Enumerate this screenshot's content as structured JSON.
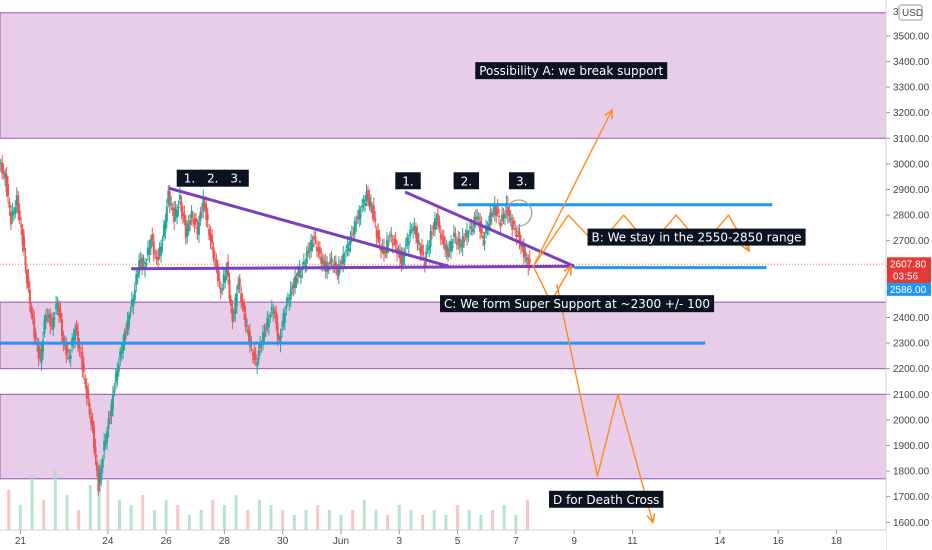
{
  "chart_data": {
    "type": "candlestick",
    "y_unit": "USD",
    "y_range": [
      1570,
      3640
    ],
    "y_ticks": [
      "3500.00",
      "3400.00",
      "3300.00",
      "3200.00",
      "3100.00",
      "3000.00",
      "2900.00",
      "2800.00",
      "2700.00",
      "2600.00",
      "2500.00",
      "2400.00",
      "2300.00",
      "2200.00",
      "2100.00",
      "2000.00",
      "1900.00",
      "1800.00",
      "1700.00",
      "1600.00"
    ],
    "y_tick_values": [
      3500,
      3400,
      3300,
      3200,
      3100,
      3000,
      2900,
      2800,
      2700,
      2600,
      2500,
      2400,
      2300,
      2200,
      2100,
      2000,
      1900,
      1800,
      1700,
      1600
    ],
    "x_ticks": [
      "21",
      "24",
      "26",
      "28",
      "30",
      "Jun",
      "3",
      "5",
      "7",
      "9",
      "11",
      "14",
      "16",
      "18"
    ],
    "x_tick_days": [
      -11,
      -8,
      -6,
      -4,
      -2,
      0,
      2,
      4,
      6,
      8,
      10,
      13,
      15,
      17
    ],
    "x_range_days": [
      -11.7,
      18.7
    ],
    "top_cut_label": "3(",
    "currency_badge": "USD",
    "current_price": "2607.80",
    "countdown": "03:56",
    "support_price": "2586.00",
    "current_price_value": 2607.8,
    "support_price_value": 2586,
    "zones": [
      {
        "from": 3100,
        "to": 3590
      },
      {
        "from": 2200,
        "to": 2460
      },
      {
        "from": 1770,
        "to": 2100
      }
    ],
    "price_path": [
      [
        -11.7,
        3000
      ],
      [
        -11.5,
        2950
      ],
      [
        -11.3,
        2780
      ],
      [
        -11.1,
        2860
      ],
      [
        -10.9,
        2700
      ],
      [
        -10.7,
        2500
      ],
      [
        -10.5,
        2340
      ],
      [
        -10.3,
        2230
      ],
      [
        -10.1,
        2420
      ],
      [
        -9.9,
        2370
      ],
      [
        -9.7,
        2460
      ],
      [
        -9.5,
        2300
      ],
      [
        -9.3,
        2240
      ],
      [
        -9.1,
        2360
      ],
      [
        -8.9,
        2250
      ],
      [
        -8.7,
        2100
      ],
      [
        -8.5,
        1960
      ],
      [
        -8.3,
        1740
      ],
      [
        -8.1,
        1900
      ],
      [
        -7.9,
        2020
      ],
      [
        -7.7,
        2170
      ],
      [
        -7.5,
        2280
      ],
      [
        -7.3,
        2380
      ],
      [
        -7.1,
        2480
      ],
      [
        -6.9,
        2620
      ],
      [
        -6.7,
        2600
      ],
      [
        -6.5,
        2710
      ],
      [
        -6.3,
        2620
      ],
      [
        -6.1,
        2700
      ],
      [
        -5.9,
        2880
      ],
      [
        -5.7,
        2790
      ],
      [
        -5.5,
        2860
      ],
      [
        -5.3,
        2730
      ],
      [
        -5.1,
        2800
      ],
      [
        -4.9,
        2740
      ],
      [
        -4.7,
        2860
      ],
      [
        -4.5,
        2730
      ],
      [
        -4.3,
        2620
      ],
      [
        -4.1,
        2500
      ],
      [
        -3.9,
        2600
      ],
      [
        -3.7,
        2380
      ],
      [
        -3.5,
        2540
      ],
      [
        -3.3,
        2410
      ],
      [
        -3.1,
        2300
      ],
      [
        -2.9,
        2220
      ],
      [
        -2.7,
        2310
      ],
      [
        -2.5,
        2380
      ],
      [
        -2.3,
        2440
      ],
      [
        -2.1,
        2300
      ],
      [
        -1.9,
        2430
      ],
      [
        -1.7,
        2500
      ],
      [
        -1.5,
        2560
      ],
      [
        -1.3,
        2590
      ],
      [
        -1.1,
        2660
      ],
      [
        -0.9,
        2710
      ],
      [
        -0.7,
        2640
      ],
      [
        -0.5,
        2590
      ],
      [
        -0.3,
        2620
      ],
      [
        -0.1,
        2580
      ],
      [
        0.1,
        2630
      ],
      [
        0.3,
        2690
      ],
      [
        0.5,
        2760
      ],
      [
        0.7,
        2820
      ],
      [
        0.9,
        2880
      ],
      [
        1.1,
        2820
      ],
      [
        1.3,
        2700
      ],
      [
        1.5,
        2650
      ],
      [
        1.7,
        2720
      ],
      [
        1.9,
        2680
      ],
      [
        2.1,
        2620
      ],
      [
        2.3,
        2700
      ],
      [
        2.5,
        2760
      ],
      [
        2.7,
        2680
      ],
      [
        2.9,
        2620
      ],
      [
        3.1,
        2720
      ],
      [
        3.3,
        2790
      ],
      [
        3.5,
        2700
      ],
      [
        3.7,
        2650
      ],
      [
        3.9,
        2720
      ],
      [
        4.1,
        2680
      ],
      [
        4.3,
        2720
      ],
      [
        4.5,
        2750
      ],
      [
        4.7,
        2800
      ],
      [
        4.9,
        2700
      ],
      [
        5.1,
        2780
      ],
      [
        5.3,
        2830
      ],
      [
        5.5,
        2770
      ],
      [
        5.7,
        2830
      ],
      [
        5.9,
        2760
      ],
      [
        6.1,
        2720
      ],
      [
        6.3,
        2650
      ],
      [
        6.5,
        2600
      ]
    ],
    "volume": [
      [
        -11.4,
        40
      ],
      [
        -11.0,
        25
      ],
      [
        -10.6,
        55
      ],
      [
        -10.2,
        30
      ],
      [
        -9.8,
        60
      ],
      [
        -9.4,
        35
      ],
      [
        -9.0,
        20
      ],
      [
        -8.6,
        45
      ],
      [
        -8.3,
        70
      ],
      [
        -8.0,
        50
      ],
      [
        -7.6,
        30
      ],
      [
        -7.2,
        25
      ],
      [
        -6.8,
        35
      ],
      [
        -6.4,
        20
      ],
      [
        -6.0,
        30
      ],
      [
        -5.6,
        25
      ],
      [
        -5.2,
        15
      ],
      [
        -4.8,
        20
      ],
      [
        -4.4,
        30
      ],
      [
        -4.0,
        25
      ],
      [
        -3.6,
        35
      ],
      [
        -3.2,
        20
      ],
      [
        -2.8,
        30
      ],
      [
        -2.4,
        25
      ],
      [
        -2.0,
        20
      ],
      [
        -1.6,
        15
      ],
      [
        -1.2,
        20
      ],
      [
        -0.8,
        25
      ],
      [
        -0.4,
        20
      ],
      [
        0.0,
        15
      ],
      [
        0.4,
        20
      ],
      [
        0.8,
        30
      ],
      [
        1.2,
        20
      ],
      [
        1.6,
        15
      ],
      [
        2.0,
        25
      ],
      [
        2.4,
        20
      ],
      [
        2.8,
        15
      ],
      [
        3.2,
        20
      ],
      [
        3.6,
        15
      ],
      [
        4.0,
        25
      ],
      [
        4.4,
        20
      ],
      [
        4.8,
        15
      ],
      [
        5.2,
        20
      ],
      [
        5.6,
        25
      ],
      [
        6.0,
        15
      ],
      [
        6.4,
        30
      ]
    ],
    "lines": [
      {
        "kind": "resistance",
        "color": "#7b3fbf",
        "points": [
          [
            -5.9,
            2905
          ],
          [
            3.7,
            2600
          ]
        ]
      },
      {
        "kind": "resistance",
        "color": "#7b3fbf",
        "points": [
          [
            2.2,
            2890
          ],
          [
            8.0,
            2600
          ]
        ]
      },
      {
        "kind": "support",
        "color": "#7b3fbf",
        "points": [
          [
            -7.2,
            2590
          ],
          [
            8.0,
            2600
          ]
        ]
      },
      {
        "kind": "level",
        "color": "#2196f3",
        "points": [
          [
            -11.7,
            2300
          ],
          [
            12.5,
            2300
          ]
        ]
      },
      {
        "kind": "level",
        "color": "#2196f3",
        "points": [
          [
            4.0,
            2840
          ],
          [
            14.8,
            2840
          ]
        ]
      },
      {
        "kind": "level",
        "color": "#2196f3",
        "points": [
          [
            8.0,
            2595
          ],
          [
            14.6,
            2595
          ]
        ]
      }
    ],
    "projections": [
      {
        "name": "A",
        "points": [
          [
            6.6,
            2600
          ],
          [
            9.3,
            3210
          ]
        ]
      },
      {
        "name": "B",
        "points": [
          [
            6.6,
            2600
          ],
          [
            7.8,
            2800
          ],
          [
            8.8,
            2680
          ],
          [
            9.7,
            2800
          ],
          [
            10.6,
            2680
          ],
          [
            11.5,
            2800
          ],
          [
            12.4,
            2680
          ],
          [
            13.3,
            2800
          ],
          [
            14.0,
            2660
          ]
        ]
      },
      {
        "name": "C",
        "points": [
          [
            6.6,
            2600
          ],
          [
            7.2,
            2460
          ],
          [
            7.9,
            2600
          ]
        ]
      },
      {
        "name": "D",
        "points": [
          [
            7.4,
            2530
          ],
          [
            8.8,
            1780
          ],
          [
            9.5,
            2100
          ],
          [
            10.7,
            1600
          ]
        ]
      }
    ],
    "markers": [
      {
        "label": "1.",
        "day": -5.2,
        "price": 2944
      },
      {
        "label": "2.",
        "day": -4.4,
        "price": 2944
      },
      {
        "label": "3.",
        "day": -3.6,
        "price": 2944
      },
      {
        "label": "1.",
        "day": 2.3,
        "price": 2934
      },
      {
        "label": "2.",
        "day": 4.3,
        "price": 2934
      },
      {
        "label": "3.",
        "day": 6.2,
        "price": 2934
      }
    ],
    "annotations": [
      {
        "id": "A",
        "text": "Possibility A: we break support",
        "day": 7.9,
        "price": 3364
      },
      {
        "id": "B",
        "text": "B: We stay in the 2550-2850 range",
        "day": 12.2,
        "price": 2714
      },
      {
        "id": "C",
        "text": "C: We form Super Support at ~2300 +/- 100",
        "day": 8.1,
        "price": 2454
      },
      {
        "id": "D",
        "text": "D for Death Cross",
        "day": 9.1,
        "price": 1690
      }
    ],
    "circle": {
      "day": 6.1,
      "price": 2808
    }
  }
}
